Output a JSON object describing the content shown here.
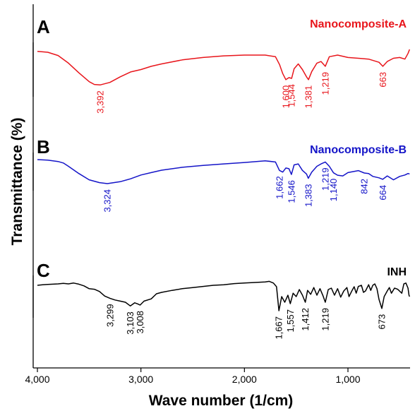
{
  "chart_data": {
    "type": "line",
    "xlabel": "Wave number (1/cm)",
    "ylabel": "Transmittance (%)",
    "xlim": [
      4000,
      400
    ],
    "x_reversed": true,
    "xticks": [
      {
        "value": 4000,
        "label": "4,000"
      },
      {
        "value": 3000,
        "label": "3,000"
      },
      {
        "value": 2000,
        "label": "2,000"
      },
      {
        "value": 1000,
        "label": "1,000"
      }
    ],
    "colors": {
      "A": "#e8151b",
      "B": "#1414c8",
      "C": "#000000"
    },
    "panels": [
      {
        "letter": "A",
        "name": "Nanocomposite-A",
        "color": "#e8151b",
        "spectrum": [
          [
            4000,
            0.95
          ],
          [
            3900,
            0.93
          ],
          [
            3800,
            0.85
          ],
          [
            3700,
            0.66
          ],
          [
            3600,
            0.42
          ],
          [
            3500,
            0.2
          ],
          [
            3450,
            0.13
          ],
          [
            3392,
            0.12
          ],
          [
            3300,
            0.18
          ],
          [
            3200,
            0.32
          ],
          [
            3100,
            0.44
          ],
          [
            3000,
            0.5
          ],
          [
            2900,
            0.58
          ],
          [
            2800,
            0.64
          ],
          [
            2600,
            0.74
          ],
          [
            2400,
            0.8
          ],
          [
            2200,
            0.84
          ],
          [
            2000,
            0.86
          ],
          [
            1800,
            0.86
          ],
          [
            1700,
            0.82
          ],
          [
            1660,
            0.62
          ],
          [
            1630,
            0.4
          ],
          [
            1600,
            0.25
          ],
          [
            1570,
            0.3
          ],
          [
            1544,
            0.28
          ],
          [
            1520,
            0.52
          ],
          [
            1480,
            0.64
          ],
          [
            1440,
            0.5
          ],
          [
            1400,
            0.32
          ],
          [
            1381,
            0.25
          ],
          [
            1350,
            0.45
          ],
          [
            1300,
            0.66
          ],
          [
            1260,
            0.7
          ],
          [
            1219,
            0.58
          ],
          [
            1180,
            0.82
          ],
          [
            1100,
            0.86
          ],
          [
            1000,
            0.8
          ],
          [
            900,
            0.78
          ],
          [
            800,
            0.76
          ],
          [
            700,
            0.68
          ],
          [
            663,
            0.58
          ],
          [
            620,
            0.7
          ],
          [
            560,
            0.78
          ],
          [
            500,
            0.8
          ],
          [
            450,
            0.76
          ],
          [
            420,
            0.9
          ],
          [
            405,
            1.0
          ]
        ],
        "peaks": [
          {
            "label": "3,392",
            "x": 3392,
            "y": 0.12
          },
          {
            "label": "1,600",
            "x": 1600,
            "y": 0.25
          },
          {
            "label": "1,544",
            "x": 1544,
            "y": 0.28
          },
          {
            "label": "1,381",
            "x": 1381,
            "y": 0.25
          },
          {
            "label": "1,219",
            "x": 1219,
            "y": 0.58
          },
          {
            "label": "663",
            "x": 663,
            "y": 0.58
          }
        ]
      },
      {
        "letter": "B",
        "name": "Nanocomposite-B",
        "color": "#1414c8",
        "spectrum": [
          [
            4000,
            1.0
          ],
          [
            3900,
            0.98
          ],
          [
            3800,
            0.92
          ],
          [
            3750,
            0.86
          ],
          [
            3700,
            0.72
          ],
          [
            3600,
            0.42
          ],
          [
            3500,
            0.16
          ],
          [
            3400,
            0.04
          ],
          [
            3324,
            0.0
          ],
          [
            3200,
            0.08
          ],
          [
            3100,
            0.2
          ],
          [
            3000,
            0.36
          ],
          [
            2900,
            0.46
          ],
          [
            2800,
            0.56
          ],
          [
            2600,
            0.68
          ],
          [
            2400,
            0.76
          ],
          [
            2200,
            0.82
          ],
          [
            2000,
            0.88
          ],
          [
            1800,
            0.95
          ],
          [
            1700,
            0.9
          ],
          [
            1662,
            0.55
          ],
          [
            1630,
            0.48
          ],
          [
            1600,
            0.65
          ],
          [
            1570,
            0.62
          ],
          [
            1546,
            0.38
          ],
          [
            1520,
            0.78
          ],
          [
            1480,
            0.82
          ],
          [
            1440,
            0.55
          ],
          [
            1400,
            0.4
          ],
          [
            1383,
            0.22
          ],
          [
            1350,
            0.48
          ],
          [
            1300,
            0.72
          ],
          [
            1260,
            0.82
          ],
          [
            1219,
            0.9
          ],
          [
            1180,
            0.72
          ],
          [
            1140,
            0.45
          ],
          [
            1100,
            0.35
          ],
          [
            1050,
            0.32
          ],
          [
            1000,
            0.46
          ],
          [
            950,
            0.5
          ],
          [
            900,
            0.54
          ],
          [
            842,
            0.44
          ],
          [
            800,
            0.42
          ],
          [
            760,
            0.3
          ],
          [
            700,
            0.24
          ],
          [
            664,
            0.18
          ],
          [
            620,
            0.32
          ],
          [
            560,
            0.16
          ],
          [
            500,
            0.3
          ],
          [
            450,
            0.36
          ],
          [
            420,
            0.42
          ],
          [
            405,
            0.4
          ]
        ],
        "peaks": [
          {
            "label": "3,324",
            "x": 3324,
            "y": 0.0
          },
          {
            "label": "1,662",
            "x": 1662,
            "y": 0.55
          },
          {
            "label": "1,546",
            "x": 1546,
            "y": 0.38
          },
          {
            "label": "1,383",
            "x": 1383,
            "y": 0.22
          },
          {
            "label": "1,219",
            "x": 1219,
            "y": 0.9
          },
          {
            "label": "1,140",
            "x": 1140,
            "y": 0.45
          },
          {
            "label": "842",
            "x": 842,
            "y": 0.44
          },
          {
            "label": "664",
            "x": 664,
            "y": 0.18
          }
        ]
      },
      {
        "letter": "C",
        "name": "INH",
        "color": "#000000",
        "spectrum": [
          [
            4000,
            0.9
          ],
          [
            3950,
            0.92
          ],
          [
            3900,
            0.93
          ],
          [
            3850,
            0.94
          ],
          [
            3800,
            0.95
          ],
          [
            3750,
            0.97
          ],
          [
            3700,
            0.95
          ],
          [
            3650,
            0.98
          ],
          [
            3600,
            0.94
          ],
          [
            3550,
            0.88
          ],
          [
            3500,
            0.78
          ],
          [
            3450,
            0.76
          ],
          [
            3400,
            0.68
          ],
          [
            3350,
            0.52
          ],
          [
            3299,
            0.44
          ],
          [
            3250,
            0.38
          ],
          [
            3200,
            0.34
          ],
          [
            3150,
            0.3
          ],
          [
            3103,
            0.17
          ],
          [
            3060,
            0.28
          ],
          [
            3030,
            0.24
          ],
          [
            3008,
            0.2
          ],
          [
            2970,
            0.34
          ],
          [
            2900,
            0.42
          ],
          [
            2850,
            0.6
          ],
          [
            2800,
            0.65
          ],
          [
            2700,
            0.72
          ],
          [
            2600,
            0.78
          ],
          [
            2500,
            0.82
          ],
          [
            2400,
            0.86
          ],
          [
            2300,
            0.9
          ],
          [
            2200,
            0.92
          ],
          [
            2100,
            0.96
          ],
          [
            2000,
            0.98
          ],
          [
            1900,
            1.0
          ],
          [
            1800,
            1.02
          ],
          [
            1760,
            1.04
          ],
          [
            1720,
            0.98
          ],
          [
            1690,
            0.85
          ],
          [
            1667,
            0.0
          ],
          [
            1640,
            0.5
          ],
          [
            1610,
            0.3
          ],
          [
            1580,
            0.55
          ],
          [
            1557,
            0.25
          ],
          [
            1530,
            0.62
          ],
          [
            1500,
            0.5
          ],
          [
            1470,
            0.75
          ],
          [
            1440,
            0.55
          ],
          [
            1412,
            0.3
          ],
          [
            1390,
            0.72
          ],
          [
            1360,
            0.58
          ],
          [
            1330,
            0.82
          ],
          [
            1300,
            0.55
          ],
          [
            1270,
            0.78
          ],
          [
            1240,
            0.52
          ],
          [
            1219,
            0.3
          ],
          [
            1190,
            0.75
          ],
          [
            1160,
            0.8
          ],
          [
            1130,
            0.55
          ],
          [
            1100,
            0.78
          ],
          [
            1070,
            0.48
          ],
          [
            1040,
            0.7
          ],
          [
            1010,
            0.82
          ],
          [
            990,
            0.5
          ],
          [
            960,
            0.72
          ],
          [
            940,
            0.85
          ],
          [
            920,
            0.62
          ],
          [
            900,
            0.86
          ],
          [
            870,
            0.9
          ],
          [
            850,
            0.65
          ],
          [
            830,
            0.7
          ],
          [
            800,
            0.92
          ],
          [
            780,
            0.72
          ],
          [
            760,
            0.9
          ],
          [
            740,
            0.95
          ],
          [
            720,
            0.78
          ],
          [
            700,
            0.4
          ],
          [
            673,
            0.08
          ],
          [
            650,
            0.5
          ],
          [
            620,
            0.7
          ],
          [
            600,
            0.82
          ],
          [
            580,
            0.62
          ],
          [
            550,
            0.8
          ],
          [
            520,
            0.76
          ],
          [
            480,
            0.62
          ],
          [
            460,
            0.95
          ],
          [
            440,
            0.98
          ],
          [
            420,
            0.8
          ],
          [
            410,
            0.55
          ],
          [
            405,
            0.5
          ]
        ],
        "peaks": [
          {
            "label": "3,299",
            "x": 3299,
            "y": 0.44
          },
          {
            "label": "3,103",
            "x": 3103,
            "y": 0.17
          },
          {
            "label": "3,008",
            "x": 3008,
            "y": 0.2
          },
          {
            "label": "1,667",
            "x": 1667,
            "y": 0.0
          },
          {
            "label": "1,557",
            "x": 1557,
            "y": 0.25
          },
          {
            "label": "1,412",
            "x": 1412,
            "y": 0.3
          },
          {
            "label": "1,219",
            "x": 1219,
            "y": 0.3
          },
          {
            "label": "673",
            "x": 673,
            "y": 0.08
          }
        ]
      }
    ]
  }
}
